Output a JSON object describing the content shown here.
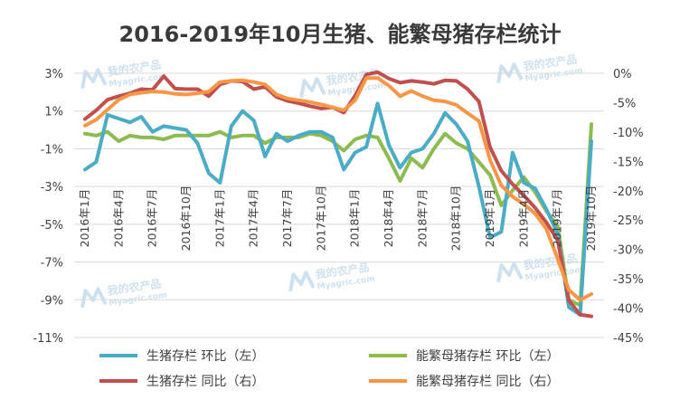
{
  "chart_data": {
    "type": "line",
    "title": "2016-2019年10月生猪、能繁母猪存栏统计",
    "watermark": {
      "text_cn": "我的农产品",
      "text_en": "Myagric.com"
    },
    "colors": {
      "pig_mom": "#4BACC6",
      "sow_mom": "#8CBC4F",
      "pig_yoy": "#C0504D",
      "sow_yoy": "#F79646",
      "grid": "#d9d9d9",
      "axis": "#bfbfbf"
    },
    "x_tick_labels": [
      "2016年1月",
      "2016年4月",
      "2016年7月",
      "2016年10月",
      "2017年1月",
      "2017年4月",
      "2017年7月",
      "2017年10月",
      "2018年1月",
      "2018年4月",
      "2018年7月",
      "2018年10月",
      "2019年1月",
      "2019年4月",
      "2019年7月",
      "2019年10月"
    ],
    "x_tick_step": 3,
    "y_left": {
      "min": -11,
      "max": 3,
      "tick_labels": [
        "3%",
        "1%",
        "-1%",
        "-3%",
        "-5%",
        "-7%",
        "-9%",
        "-11%"
      ]
    },
    "y_right": {
      "min": -45,
      "max": 0,
      "tick_labels": [
        "0%",
        "-5%",
        "-10%",
        "-15%",
        "-20%",
        "-25%",
        "-30%",
        "-35%",
        "-40%",
        "-45%"
      ]
    },
    "legend": {
      "items": [
        {
          "key": "pig_mom",
          "label": "生猪存栏 环比（左）"
        },
        {
          "key": "sow_mom",
          "label": "能繁母猪存栏 环比（左）"
        },
        {
          "key": "pig_yoy",
          "label": "生猪存栏 同比（右）"
        },
        {
          "key": "sow_yoy",
          "label": "能繁母猪存栏 同比（右）"
        }
      ]
    },
    "series": [
      {
        "key": "pig_mom",
        "name": "生猪存栏 环比（左）",
        "axis": "left",
        "values": [
          -2.1,
          -1.7,
          0.8,
          0.6,
          0.4,
          0.7,
          -0.1,
          0.2,
          0.1,
          0.0,
          -0.7,
          -2.3,
          -2.8,
          0.2,
          1.0,
          0.5,
          -1.4,
          -0.2,
          -0.6,
          -0.3,
          -0.1,
          -0.1,
          -0.4,
          -2.1,
          -1.2,
          -0.9,
          1.4,
          -0.8,
          -2.0,
          -1.2,
          -1.0,
          -0.2,
          0.9,
          0.3,
          -0.6,
          -3.0,
          -5.7,
          -5.4,
          -1.2,
          -2.8,
          -3.1,
          -4.2,
          -5.5,
          -9.4,
          -9.8,
          -0.6
        ]
      },
      {
        "key": "sow_mom",
        "name": "能繁母猪存栏 环比（左）",
        "axis": "left",
        "values": [
          -0.2,
          -0.3,
          -0.1,
          -0.6,
          -0.3,
          -0.4,
          -0.4,
          -0.5,
          -0.3,
          -0.3,
          -0.3,
          -0.3,
          -0.1,
          -0.4,
          -0.3,
          -0.3,
          -0.7,
          -0.4,
          -0.4,
          -0.4,
          -0.2,
          -0.3,
          -0.6,
          -1.1,
          -0.5,
          -0.3,
          -0.4,
          -1.5,
          -2.7,
          -1.5,
          -2.0,
          -1.0,
          -0.2,
          -0.7,
          -1.0,
          -1.7,
          -2.4,
          -4.0,
          -3.2,
          -2.5,
          -3.3,
          -4.3,
          -5.1,
          -9.0,
          -9.3,
          0.3
        ]
      },
      {
        "key": "pig_yoy",
        "name": "生猪存栏 同比（右）",
        "axis": "right",
        "values": [
          -7.8,
          -6.3,
          -4.5,
          -3.9,
          -3.4,
          -2.7,
          -2.8,
          -0.5,
          -2.6,
          -2.7,
          -2.7,
          -3.9,
          -1.9,
          -1.3,
          -1.4,
          -2.7,
          -2.3,
          -4.0,
          -4.7,
          -5.1,
          -5.6,
          -6.0,
          -5.8,
          -6.7,
          -3.8,
          -0.2,
          0.2,
          -0.9,
          -1.6,
          -1.3,
          -1.5,
          -1.8,
          -1.2,
          -1.3,
          -2.7,
          -4.8,
          -12.6,
          -16.6,
          -18.9,
          -20.8,
          -22.9,
          -25.4,
          -28.4,
          -38.7,
          -41.1,
          -41.4
        ]
      },
      {
        "key": "sow_yoy",
        "name": "能繁母猪存栏 同比（右）",
        "axis": "right",
        "values": [
          -8.9,
          -7.9,
          -6.2,
          -4.5,
          -3.6,
          -3.3,
          -3.1,
          -3.2,
          -3.5,
          -3.6,
          -3.4,
          -3.1,
          -1.5,
          -1.3,
          -1.2,
          -1.5,
          -1.9,
          -3.6,
          -4.3,
          -4.6,
          -4.9,
          -5.3,
          -5.8,
          -6.3,
          -4.6,
          -0.8,
          -0.8,
          -2.1,
          -3.9,
          -3.0,
          -3.9,
          -4.6,
          -4.8,
          -5.4,
          -6.8,
          -8.1,
          -14.8,
          -19.1,
          -21.0,
          -22.3,
          -23.9,
          -26.5,
          -31.6,
          -36.9,
          -38.6,
          -37.6
        ]
      }
    ]
  }
}
